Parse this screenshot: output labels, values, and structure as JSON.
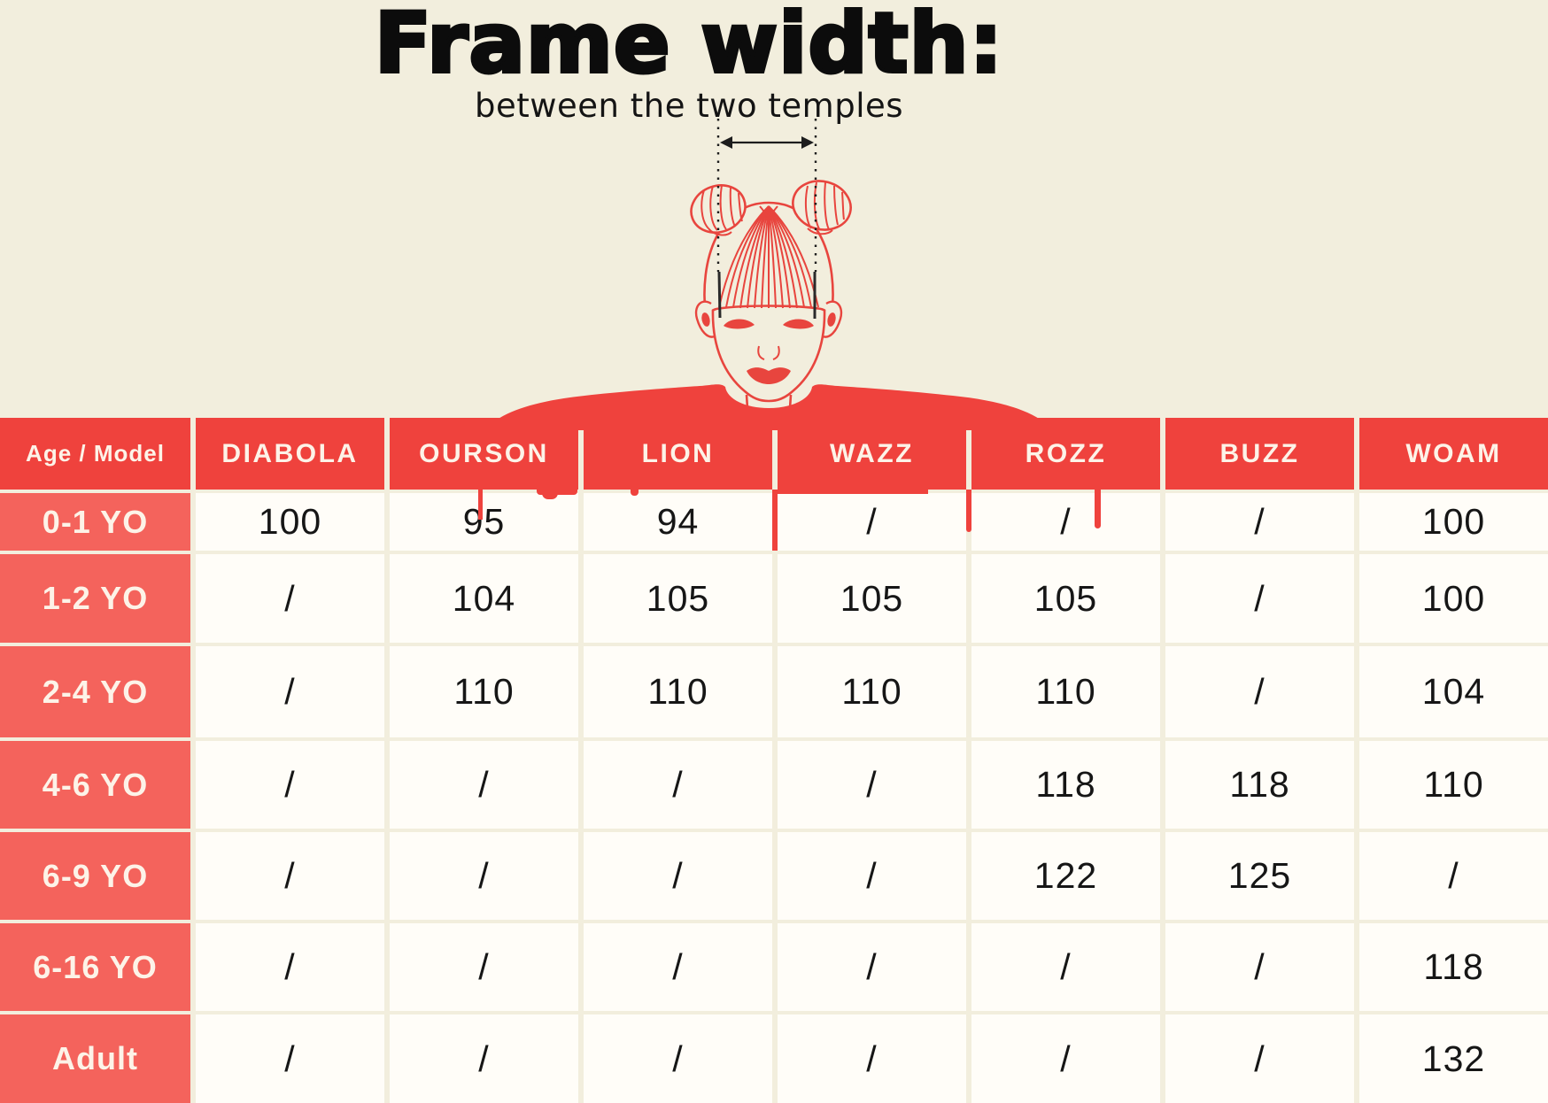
{
  "page": {
    "title": "Frame width:",
    "subtitle": "between the two temples"
  },
  "colors": {
    "background": "#f2eedd",
    "header_red": "#ef423d",
    "row_label_red": "#f4635c",
    "illustration_red": "#e8453e",
    "cell_background": "#fffdf8",
    "value_text": "#161616",
    "label_text": "#fdf3e8",
    "measure_line": "#1d1d1d"
  },
  "illustration": {
    "description": "red line-art of a child with two hair buns wearing a red shirt, dashed measurement lines dropping to the temples with a double-headed arrow between them"
  },
  "chart_data": {
    "type": "table",
    "title": "Frame width:",
    "subtitle": "between the two temples",
    "columns": [
      "Age / Model",
      "DIABOLA",
      "OURSON",
      "LION",
      "WAZZ",
      "ROZZ",
      "BUZZ",
      "WOAM"
    ],
    "rows": [
      [
        "0-1 YO",
        "100",
        "95",
        "94",
        "/",
        "/",
        "/",
        "100"
      ],
      [
        "1-2 YO",
        "/",
        "104",
        "105",
        "105",
        "105",
        "/",
        "100"
      ],
      [
        "2-4 YO",
        "/",
        "110",
        "110",
        "110",
        "110",
        "/",
        "104"
      ],
      [
        "4-6 YO",
        "/",
        "/",
        "/",
        "/",
        "118",
        "118",
        "110"
      ],
      [
        "6-9 YO",
        "/",
        "/",
        "/",
        "/",
        "122",
        "125",
        "/"
      ],
      [
        "6-16 YO",
        "/",
        "/",
        "/",
        "/",
        "/",
        "/",
        "118"
      ],
      [
        "Adult",
        "/",
        "/",
        "/",
        "/",
        "/",
        "/",
        "132"
      ]
    ]
  }
}
